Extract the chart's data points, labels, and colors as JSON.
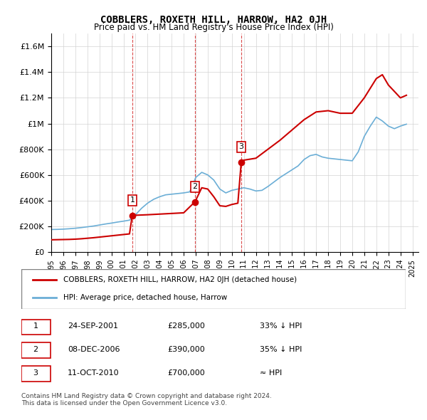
{
  "title": "COBBLERS, ROXETH HILL, HARROW, HA2 0JH",
  "subtitle": "Price paid vs. HM Land Registry's House Price Index (HPI)",
  "ylabel_ticks": [
    "£0",
    "£200K",
    "£400K",
    "£600K",
    "£800K",
    "£1M",
    "£1.2M",
    "£1.4M",
    "£1.6M"
  ],
  "ytick_values": [
    0,
    200000,
    400000,
    600000,
    800000,
    1000000,
    1200000,
    1400000,
    1600000
  ],
  "ylim": [
    0,
    1700000
  ],
  "xlim_start": 1995.0,
  "xlim_end": 2025.5,
  "hpi_color": "#6baed6",
  "price_color": "#cc0000",
  "sale_marker_color": "#cc0000",
  "dashed_line_color": "#cc0000",
  "legend_label_price": "COBBLERS, ROXETH HILL, HARROW, HA2 0JH (detached house)",
  "legend_label_hpi": "HPI: Average price, detached house, Harrow",
  "sale1_date": "24-SEP-2001",
  "sale1_x": 2001.73,
  "sale1_price": 285000,
  "sale1_label": "1",
  "sale1_hpi_pct": "33% ↓ HPI",
  "sale2_date": "08-DEC-2006",
  "sale2_x": 2006.93,
  "sale2_price": 390000,
  "sale2_label": "2",
  "sale2_hpi_pct": "35% ↓ HPI",
  "sale3_date": "11-OCT-2010",
  "sale3_x": 2010.78,
  "sale3_price": 700000,
  "sale3_label": "3",
  "sale3_hpi_pct": "≈ HPI",
  "footnote": "Contains HM Land Registry data © Crown copyright and database right 2024.\nThis data is licensed under the Open Government Licence v3.0.",
  "hpi_x": [
    1995.0,
    1995.5,
    1996.0,
    1996.5,
    1997.0,
    1997.5,
    1998.0,
    1998.5,
    1999.0,
    1999.5,
    2000.0,
    2000.5,
    2001.0,
    2001.5,
    2002.0,
    2002.5,
    2003.0,
    2003.5,
    2004.0,
    2004.5,
    2005.0,
    2005.5,
    2006.0,
    2006.5,
    2007.0,
    2007.5,
    2008.0,
    2008.5,
    2009.0,
    2009.5,
    2010.0,
    2010.5,
    2011.0,
    2011.5,
    2012.0,
    2012.5,
    2013.0,
    2013.5,
    2014.0,
    2014.5,
    2015.0,
    2015.5,
    2016.0,
    2016.5,
    2017.0,
    2017.5,
    2018.0,
    2018.5,
    2019.0,
    2019.5,
    2020.0,
    2020.5,
    2021.0,
    2021.5,
    2022.0,
    2022.5,
    2023.0,
    2023.5,
    2024.0,
    2024.5
  ],
  "hpi_y": [
    175000,
    176000,
    178000,
    181000,
    185000,
    190000,
    196000,
    202000,
    210000,
    218000,
    225000,
    233000,
    240000,
    248000,
    290000,
    340000,
    380000,
    410000,
    430000,
    445000,
    450000,
    455000,
    460000,
    468000,
    580000,
    620000,
    600000,
    560000,
    490000,
    460000,
    480000,
    490000,
    500000,
    490000,
    475000,
    480000,
    510000,
    545000,
    580000,
    610000,
    640000,
    670000,
    720000,
    750000,
    760000,
    740000,
    730000,
    725000,
    720000,
    715000,
    710000,
    780000,
    900000,
    980000,
    1050000,
    1020000,
    980000,
    960000,
    980000,
    995000
  ],
  "price_x": [
    1995.0,
    1995.5,
    1996.0,
    1996.5,
    1997.0,
    1997.5,
    1998.0,
    1998.5,
    1999.0,
    1999.5,
    2000.0,
    2000.5,
    2001.0,
    2001.5,
    2001.73,
    2001.74,
    2003.0,
    2004.0,
    2005.0,
    2006.0,
    2006.93,
    2006.94,
    2007.5,
    2008.0,
    2008.5,
    2009.0,
    2009.5,
    2010.0,
    2010.5,
    2010.78,
    2010.79,
    2011.0,
    2012.0,
    2013.0,
    2014.0,
    2015.0,
    2016.0,
    2017.0,
    2018.0,
    2019.0,
    2020.0,
    2021.0,
    2022.0,
    2022.5,
    2023.0,
    2023.5,
    2024.0,
    2024.5
  ],
  "price_y": [
    95000,
    96000,
    97000,
    98000,
    100000,
    103000,
    107000,
    111000,
    116000,
    121000,
    126000,
    131000,
    136000,
    141000,
    285000,
    285000,
    290000,
    295000,
    300000,
    305000,
    390000,
    390000,
    500000,
    490000,
    430000,
    360000,
    355000,
    370000,
    380000,
    700000,
    700000,
    715000,
    730000,
    800000,
    870000,
    950000,
    1030000,
    1090000,
    1100000,
    1080000,
    1080000,
    1200000,
    1350000,
    1380000,
    1300000,
    1250000,
    1200000,
    1220000
  ]
}
